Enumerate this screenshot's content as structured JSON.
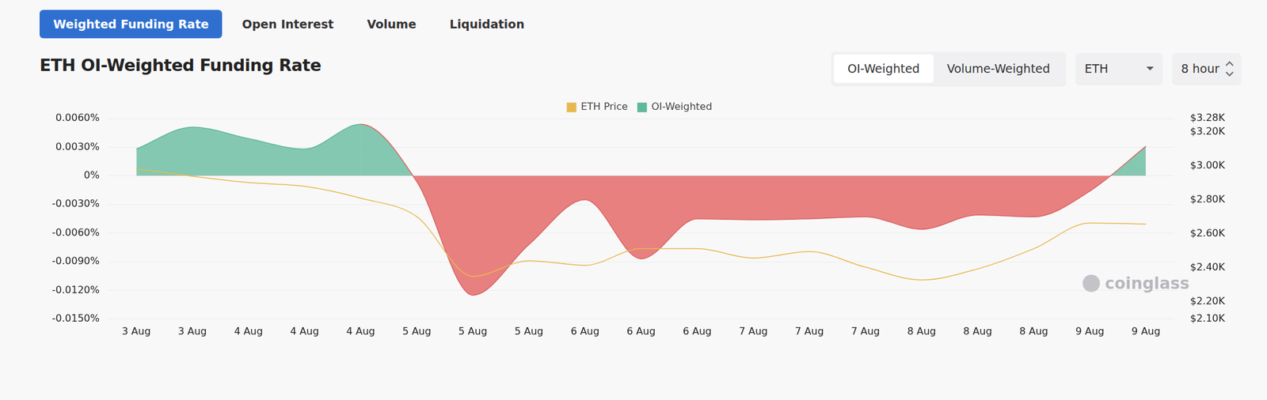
{
  "page": {
    "tabs": [
      "Weighted Funding Rate",
      "Open Interest",
      "Volume",
      "Liquidation"
    ],
    "active_tab": "Weighted Funding Rate",
    "toggle": [
      "OI-Weighted",
      "Volume-Weighted"
    ],
    "active_toggle": "OI-Weighted",
    "selects": [
      "ETH",
      "8 hour"
    ],
    "watermark": "coinglass"
  },
  "chart_data": {
    "type": "line",
    "title": "ETH OI-Weighted Funding Rate",
    "categories": [
      "3 Aug",
      "3 Aug",
      "4 Aug",
      "4 Aug",
      "4 Aug",
      "5 Aug",
      "5 Aug",
      "5 Aug",
      "6 Aug",
      "6 Aug",
      "6 Aug",
      "7 Aug",
      "7 Aug",
      "7 Aug",
      "8 Aug",
      "8 Aug",
      "8 Aug",
      "9 Aug",
      "9 Aug"
    ],
    "series": [
      {
        "name": "ETH Price",
        "type": "line",
        "color": "#e8b84f",
        "axis": "y2",
        "values": [
          2984,
          2940,
          2903,
          2881,
          2811,
          2703,
          2351,
          2443,
          2416,
          2514,
          2514,
          2459,
          2497,
          2405,
          2330,
          2395,
          2514,
          2665,
          2659
        ]
      },
      {
        "name": "OI-Weighted",
        "type": "area",
        "color": "#5fb89a",
        "values": [
          0.0028,
          0.0051,
          0.0039,
          0.0028,
          0.0054,
          -0.0006,
          -0.0125,
          -0.0072,
          -0.0025,
          -0.0087,
          -0.0045,
          -0.0046,
          -0.0045,
          -0.0043,
          -0.0056,
          -0.0041,
          -0.0043,
          -0.0016,
          0.0031
        ]
      }
    ],
    "ylim": [
      -0.015,
      0.006
    ],
    "yticks": [
      {
        "value": -0.015,
        "label": "-0.0150%"
      },
      {
        "value": -0.012,
        "label": "-0.0120%"
      },
      {
        "value": -0.009,
        "label": "-0.0090%"
      },
      {
        "value": -0.006,
        "label": "-0.0060%"
      },
      {
        "value": -0.003,
        "label": "-0.0030%"
      },
      {
        "value": 0,
        "label": "0%"
      },
      {
        "value": 0.003,
        "label": "0.0030%"
      },
      {
        "value": 0.006,
        "label": "0.0060%"
      }
    ],
    "y2lim": [
      2100,
      3280
    ],
    "y2ticks": [
      {
        "value": 2100,
        "label": "$2.10K"
      },
      {
        "value": 2200,
        "label": "$2.20K"
      },
      {
        "value": 2400,
        "label": "$2.40K"
      },
      {
        "value": 2600,
        "label": "$2.60K"
      },
      {
        "value": 2800,
        "label": "$2.80K"
      },
      {
        "value": 3000,
        "label": "$3.00K"
      },
      {
        "value": 3200,
        "label": "$3.20K"
      },
      {
        "value": 3280,
        "label": "$3.28K"
      }
    ],
    "grid": true,
    "legend": "top"
  }
}
